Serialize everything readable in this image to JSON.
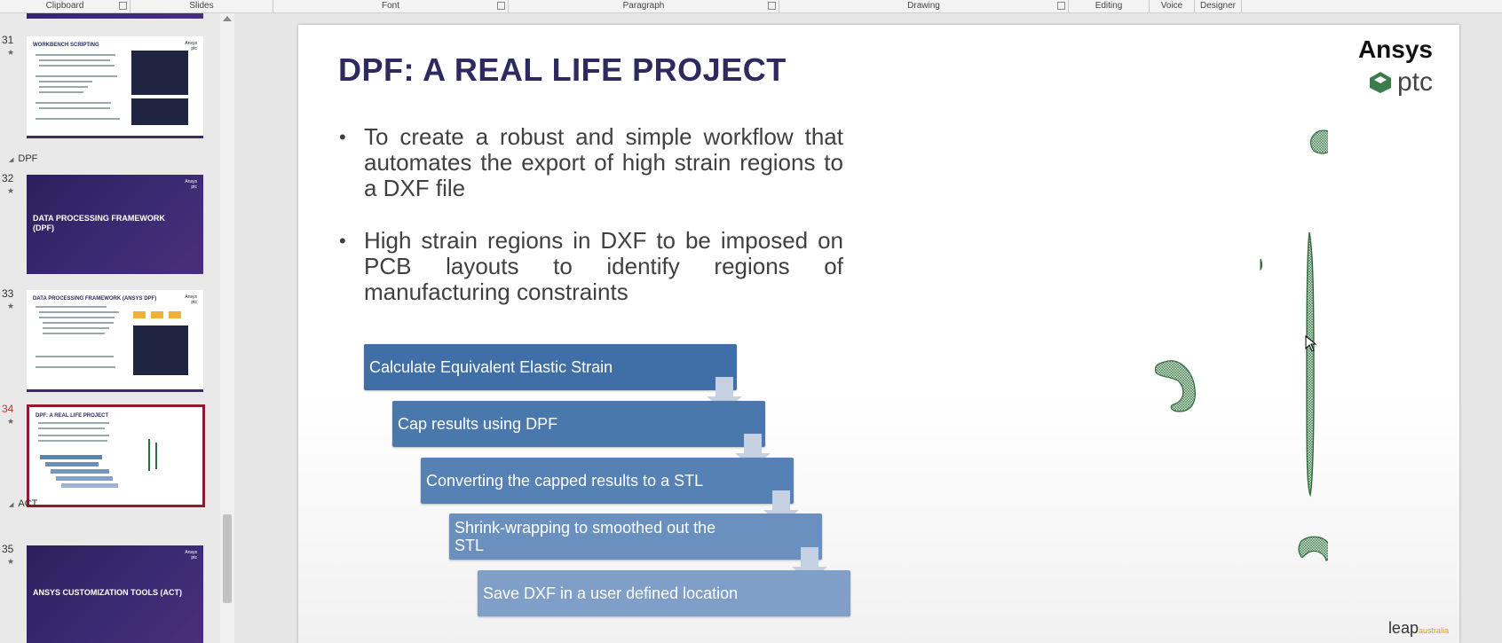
{
  "ribbon": {
    "groups": [
      "Clipboard",
      "Slides",
      "Font",
      "Paragraph",
      "Drawing",
      "Editing",
      "Voice",
      "Designer"
    ]
  },
  "thumbnails": {
    "sections": [
      "DPF",
      "ACT"
    ],
    "slides": [
      {
        "number": "31",
        "title": "WORKBENCH SCRIPTING"
      },
      {
        "number": "32",
        "title": "DATA PROCESSING FRAMEWORK (DPF)"
      },
      {
        "number": "33",
        "title": "DATA PROCESSING FRAMEWORK (ANSYS DPF)"
      },
      {
        "number": "34",
        "title": "DPF: A REAL LIFE PROJECT"
      },
      {
        "number": "35",
        "title": "ANSYS CUSTOMIZATION TOOLS (ACT)"
      }
    ],
    "logo_text": [
      "Ansys",
      "ptc"
    ]
  },
  "slide": {
    "title": "DPF: A REAL LIFE PROJECT",
    "bullets": [
      "To create a robust and simple workflow that automates the export of high strain regions to a DXF file",
      "High strain regions in DXF to be imposed on PCB layouts to identify regions of manufacturing constraints"
    ],
    "steps": [
      "Calculate Equivalent Elastic Strain",
      "Cap results using DPF",
      "Converting the capped results to a STL",
      "Shrink-wrapping to smoothed out the STL",
      "Save DXF in a user defined location"
    ],
    "step_colors": [
      "#3f6fa6",
      "#4a78ad",
      "#5681b5",
      "#6a90bf",
      "#7f9fc9"
    ],
    "logos": {
      "ansys": "Ansys",
      "ptc": "ptc",
      "leap": "leap",
      "leap_sub": "australia"
    },
    "mesh_color": "#2f6b3c"
  }
}
